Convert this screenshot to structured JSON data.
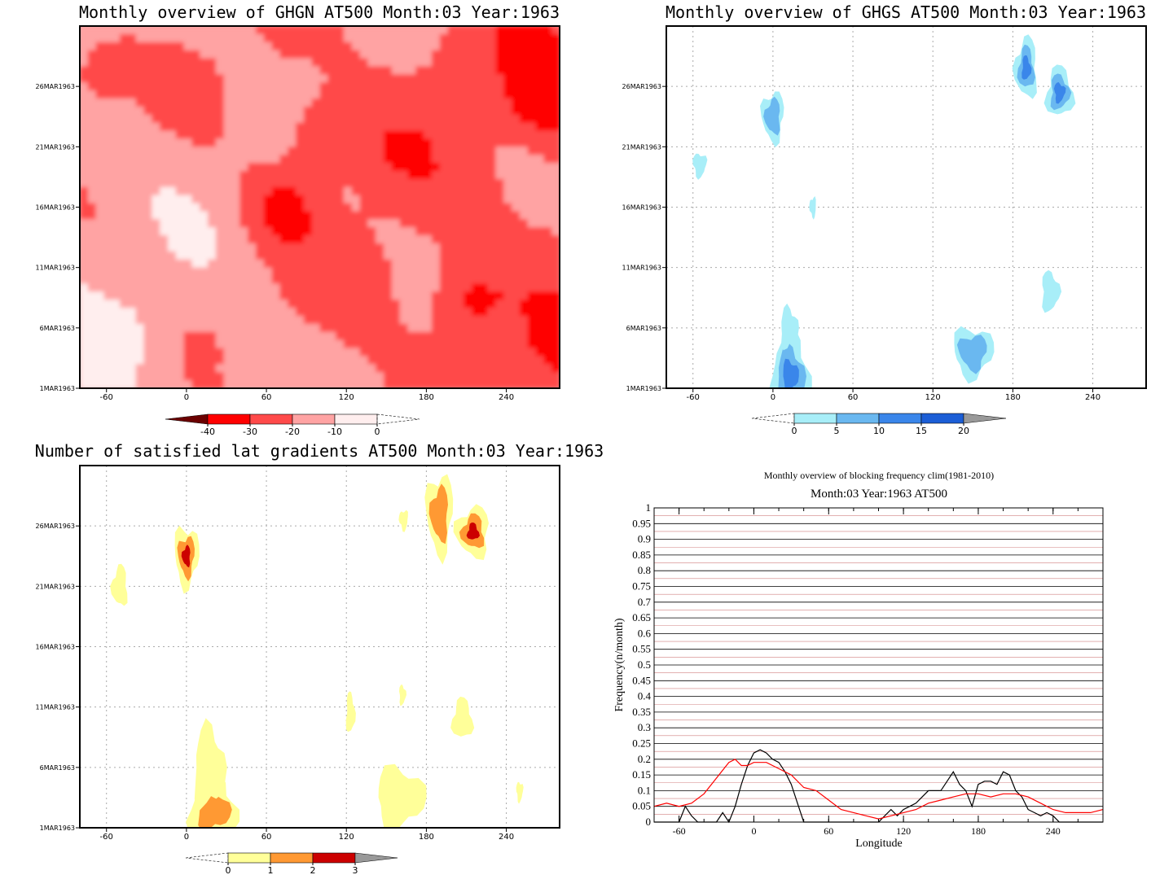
{
  "panels": {
    "ghgn": {
      "title": "Monthly overview of GHGN AT500 Month:03 Year:1963",
      "x_ticks": [
        "-60",
        "0",
        "60",
        "120",
        "180",
        "240"
      ],
      "y_ticks": [
        "1MAR1963",
        "6MAR1963",
        "11MAR1963",
        "16MAR1963",
        "21MAR1963",
        "26MAR1963"
      ],
      "colorbar_labels": [
        "-40",
        "-30",
        "-20",
        "-10",
        "0"
      ],
      "colors": [
        "#6b0000",
        "#ff0000",
        "#ff4a4a",
        "#ffa3a3",
        "#ffeeee"
      ]
    },
    "ghgs": {
      "title": "Monthly overview of GHGS AT500 Month:03 Year:1963",
      "x_ticks": [
        "-60",
        "0",
        "60",
        "120",
        "180",
        "240"
      ],
      "y_ticks": [
        "1MAR1963",
        "6MAR1963",
        "11MAR1963",
        "16MAR1963",
        "21MAR1963",
        "26MAR1963"
      ],
      "colorbar_labels": [
        "0",
        "5",
        "10",
        "15",
        "20"
      ],
      "colors": [
        "#a8eef8",
        "#6ab8f0",
        "#3a86ea",
        "#1c5ed6",
        "#999999"
      ]
    },
    "nsat": {
      "title": "Number of satisfied lat gradients AT500 Month:03 Year:1963",
      "x_ticks": [
        "-60",
        "0",
        "60",
        "120",
        "180",
        "240"
      ],
      "y_ticks": [
        "1MAR1963",
        "6MAR1963",
        "11MAR1963",
        "16MAR1963",
        "21MAR1963",
        "26MAR1963"
      ],
      "colorbar_labels": [
        "0",
        "1",
        "2",
        "3"
      ],
      "colors": [
        "#ffff99",
        "#ff9933",
        "#cc0000",
        "#999999"
      ]
    },
    "freq": {
      "title1": "Monthly overview of blocking frequency clim(1981-2010)",
      "title2": "Month:03 Year:1963  AT500",
      "ylabel": "Frequency(n/month)",
      "xlabel": "Longitude",
      "x_ticks": [
        "-60",
        "0",
        "60",
        "120",
        "180",
        "240"
      ],
      "y_ticks": [
        "0",
        "0.05",
        "0.1",
        "0.15",
        "0.2",
        "0.25",
        "0.3",
        "0.35",
        "0.4",
        "0.45",
        "0.5",
        "0.55",
        "0.6",
        "0.65",
        "0.7",
        "0.75",
        "0.8",
        "0.85",
        "0.9",
        "0.95",
        "1"
      ]
    }
  },
  "chart_data": [
    {
      "type": "heatmap",
      "title": "Monthly overview of GHGN AT500 Month:03 Year:1963",
      "xlim": [
        -80,
        280
      ],
      "ylim": [
        "1MAR1963",
        "31MAR1963"
      ],
      "levels": [
        -40,
        -30,
        -20,
        -10,
        0
      ],
      "blobs": [
        {
          "x": -70,
          "y": 27,
          "level": 3
        },
        {
          "x": 210,
          "y": 8,
          "level": 3
        },
        {
          "x": 270,
          "y": 25,
          "level": 3
        },
        {
          "x": 100,
          "y": 22,
          "level": 3
        },
        {
          "x": 70,
          "y": 16,
          "level": 3
        },
        {
          "x": 240,
          "y": 2,
          "level": 2
        },
        {
          "x": 150,
          "y": 20,
          "level": 2
        },
        {
          "x": 130,
          "y": 10,
          "level": 2
        },
        {
          "x": 0,
          "y": 26,
          "level": 2
        },
        {
          "x": 60,
          "y": 27,
          "level": 2
        },
        {
          "x": 200,
          "y": 27,
          "level": 2
        },
        {
          "x": -40,
          "y": 6,
          "level": 1
        },
        {
          "x": 30,
          "y": 2,
          "level": 1
        }
      ]
    },
    {
      "type": "heatmap",
      "title": "Monthly overview of GHGS AT500 Month:03 Year:1963",
      "xlim": [
        -80,
        280
      ],
      "ylim": [
        "1MAR1963",
        "31MAR1963"
      ],
      "levels": [
        0,
        5,
        10,
        15,
        20
      ],
      "blobs": [
        {
          "x": 13,
          "y": 2,
          "rx": 18,
          "ry": 4,
          "level": 3
        },
        {
          "x": 12,
          "y": 6,
          "rx": 8,
          "ry": 2,
          "level": 1
        },
        {
          "x": 150,
          "y": 4,
          "rx": 18,
          "ry": 2.5,
          "level": 2
        },
        {
          "x": 0,
          "y": 23.5,
          "rx": 10,
          "ry": 2.5,
          "level": 2
        },
        {
          "x": 190,
          "y": 27.5,
          "rx": 10,
          "ry": 3,
          "level": 3
        },
        {
          "x": 215,
          "y": 25.5,
          "rx": 12,
          "ry": 2.5,
          "level": 3
        },
        {
          "x": 208,
          "y": 9,
          "rx": 8,
          "ry": 2,
          "level": 1
        },
        {
          "x": -55,
          "y": 19.5,
          "rx": 6,
          "ry": 1.2,
          "level": 1
        },
        {
          "x": 30,
          "y": 16,
          "rx": 3,
          "ry": 1,
          "level": 1
        }
      ]
    },
    {
      "type": "heatmap",
      "title": "Number of satisfied lat gradients AT500 Month:03 Year:1963",
      "xlim": [
        -80,
        280
      ],
      "ylim": [
        "1MAR1963",
        "31MAR1963"
      ],
      "levels": [
        0,
        1,
        2,
        3
      ],
      "blobs": [
        {
          "x": 20,
          "y": 2.5,
          "rx": 22,
          "ry": 3,
          "level": 2
        },
        {
          "x": 17,
          "y": 6,
          "rx": 14,
          "ry": 4,
          "level": 1
        },
        {
          "x": 160,
          "y": 3.5,
          "rx": 22,
          "ry": 3,
          "level": 1
        },
        {
          "x": 0,
          "y": 23.5,
          "rx": 11,
          "ry": 3,
          "level": 3
        },
        {
          "x": 190,
          "y": 27,
          "rx": 12,
          "ry": 4,
          "level": 2
        },
        {
          "x": 215,
          "y": 25.5,
          "rx": 15,
          "ry": 2.5,
          "level": 3
        },
        {
          "x": -50,
          "y": 21,
          "rx": 7,
          "ry": 2,
          "level": 1
        },
        {
          "x": 207,
          "y": 10,
          "rx": 9,
          "ry": 2,
          "level": 1
        },
        {
          "x": 123,
          "y": 10.5,
          "rx": 4,
          "ry": 2,
          "level": 1
        },
        {
          "x": 162,
          "y": 12,
          "rx": 3,
          "ry": 1,
          "level": 1
        },
        {
          "x": 250,
          "y": 4,
          "rx": 3,
          "ry": 1,
          "level": 1
        },
        {
          "x": 163,
          "y": 26.5,
          "rx": 4,
          "ry": 1,
          "level": 1
        }
      ]
    },
    {
      "type": "line",
      "title": "Monthly overview of blocking frequency clim(1981-2010)",
      "subtitle": "Month:03 Year:1963  AT500",
      "xlabel": "Longitude",
      "ylabel": "Frequency(n/month)",
      "xlim": [
        -80,
        280
      ],
      "ylim": [
        0,
        1
      ],
      "grid": true,
      "series": [
        {
          "color": "#000000",
          "x": [
            -80,
            -60,
            -55,
            -50,
            -45,
            -40,
            -30,
            -25,
            -20,
            -15,
            -10,
            -5,
            0,
            5,
            10,
            15,
            20,
            25,
            30,
            35,
            40,
            50,
            100,
            110,
            115,
            120,
            125,
            130,
            140,
            150,
            155,
            160,
            165,
            170,
            175,
            180,
            185,
            190,
            195,
            200,
            205,
            210,
            215,
            220,
            225,
            230,
            235,
            240,
            245,
            250,
            280
          ],
          "y": [
            0,
            0,
            0.05,
            0.02,
            0,
            0,
            0,
            0.03,
            0,
            0.05,
            0.12,
            0.18,
            0.22,
            0.23,
            0.22,
            0.2,
            0.19,
            0.16,
            0.12,
            0.06,
            0,
            0,
            0,
            0.04,
            0.02,
            0.04,
            0.05,
            0.06,
            0.1,
            0.1,
            0.13,
            0.16,
            0.12,
            0.1,
            0.05,
            0.12,
            0.13,
            0.13,
            0.12,
            0.16,
            0.15,
            0.1,
            0.08,
            0.04,
            0.03,
            0.02,
            0.03,
            0.02,
            0,
            0,
            0
          ]
        },
        {
          "color": "#ff0000",
          "x": [
            -80,
            -70,
            -60,
            -50,
            -40,
            -30,
            -20,
            -15,
            -10,
            -5,
            0,
            10,
            20,
            30,
            40,
            50,
            60,
            70,
            80,
            90,
            100,
            110,
            120,
            130,
            140,
            150,
            160,
            170,
            180,
            190,
            200,
            210,
            220,
            230,
            240,
            250,
            260,
            270,
            280
          ],
          "y": [
            0.05,
            0.06,
            0.05,
            0.06,
            0.09,
            0.14,
            0.19,
            0.2,
            0.18,
            0.18,
            0.19,
            0.19,
            0.17,
            0.15,
            0.11,
            0.1,
            0.07,
            0.04,
            0.03,
            0.02,
            0.01,
            0.02,
            0.03,
            0.04,
            0.06,
            0.07,
            0.08,
            0.09,
            0.09,
            0.08,
            0.09,
            0.09,
            0.08,
            0.06,
            0.04,
            0.03,
            0.03,
            0.03,
            0.04
          ]
        }
      ]
    }
  ]
}
